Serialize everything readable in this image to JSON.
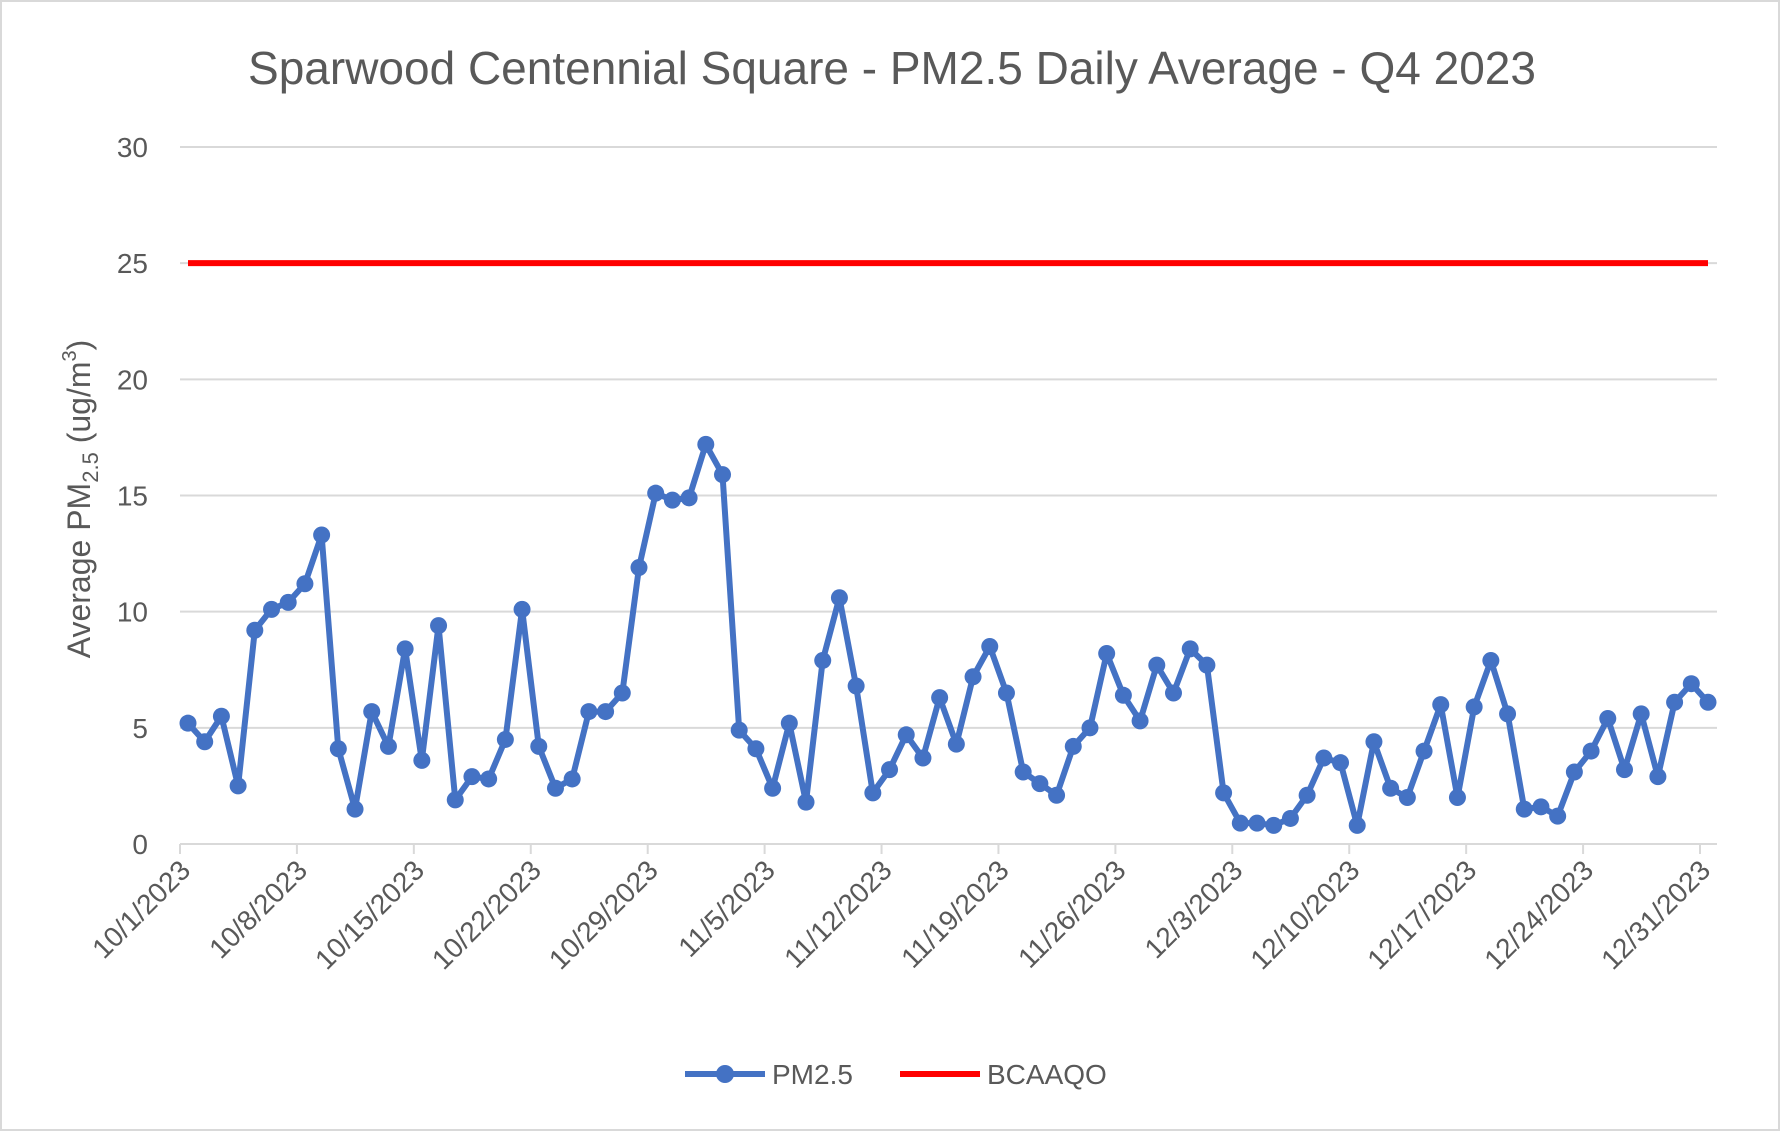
{
  "chart_data": {
    "type": "line",
    "title": "Sparwood Centennial Square - PM2.5 Daily Average - Q4 2023",
    "ylabel": {
      "prefix": "Average PM",
      "sub": "2.5",
      "mid": " (ug/m",
      "sup": "3",
      "suffix": ")"
    },
    "xlabel": "",
    "ylim": [
      0,
      30
    ],
    "yticks": [
      "0",
      "5",
      "10",
      "15",
      "20",
      "25",
      "30"
    ],
    "xticks": [
      "10/1/2023",
      "10/8/2023",
      "10/15/2023",
      "10/22/2023",
      "10/29/2023",
      "11/5/2023",
      "11/12/2023",
      "11/19/2023",
      "11/26/2023",
      "12/3/2023",
      "12/10/2023",
      "12/17/2023",
      "12/24/2023",
      "12/31/2023"
    ],
    "x": {
      "start": "10/1/2023",
      "end": "12/31/2023",
      "unit": "day"
    },
    "grid": true,
    "legend_position": "bottom",
    "series": [
      {
        "name": "PM2.5",
        "color": "#4472C4",
        "marker": "circle",
        "values": [
          5.2,
          4.4,
          5.5,
          2.5,
          9.2,
          10.1,
          10.4,
          11.2,
          13.3,
          4.1,
          1.5,
          5.7,
          4.2,
          8.4,
          3.6,
          9.4,
          1.9,
          2.9,
          2.8,
          4.5,
          10.1,
          4.2,
          2.4,
          2.8,
          5.7,
          5.7,
          6.5,
          11.9,
          15.1,
          14.8,
          14.9,
          17.2,
          15.9,
          4.9,
          4.1,
          2.4,
          5.2,
          1.8,
          7.9,
          10.6,
          6.8,
          2.2,
          3.2,
          4.7,
          3.7,
          6.3,
          4.3,
          7.2,
          8.5,
          6.5,
          3.1,
          2.6,
          2.1,
          4.2,
          5.0,
          8.2,
          6.4,
          5.3,
          7.7,
          6.5,
          8.4,
          7.7,
          2.2,
          0.9,
          0.9,
          0.8,
          1.1,
          2.1,
          3.7,
          3.5,
          0.8,
          4.4,
          2.4,
          2.0,
          4.0,
          6.0,
          2.0,
          5.9,
          7.9,
          5.6,
          1.5,
          1.6,
          1.2,
          3.1,
          4.0,
          5.4,
          3.2,
          5.6,
          2.9,
          6.1,
          6.9,
          6.1
        ]
      },
      {
        "name": "BCAAQO",
        "color": "#FF0000",
        "marker": "none",
        "values_constant": 25
      }
    ]
  }
}
